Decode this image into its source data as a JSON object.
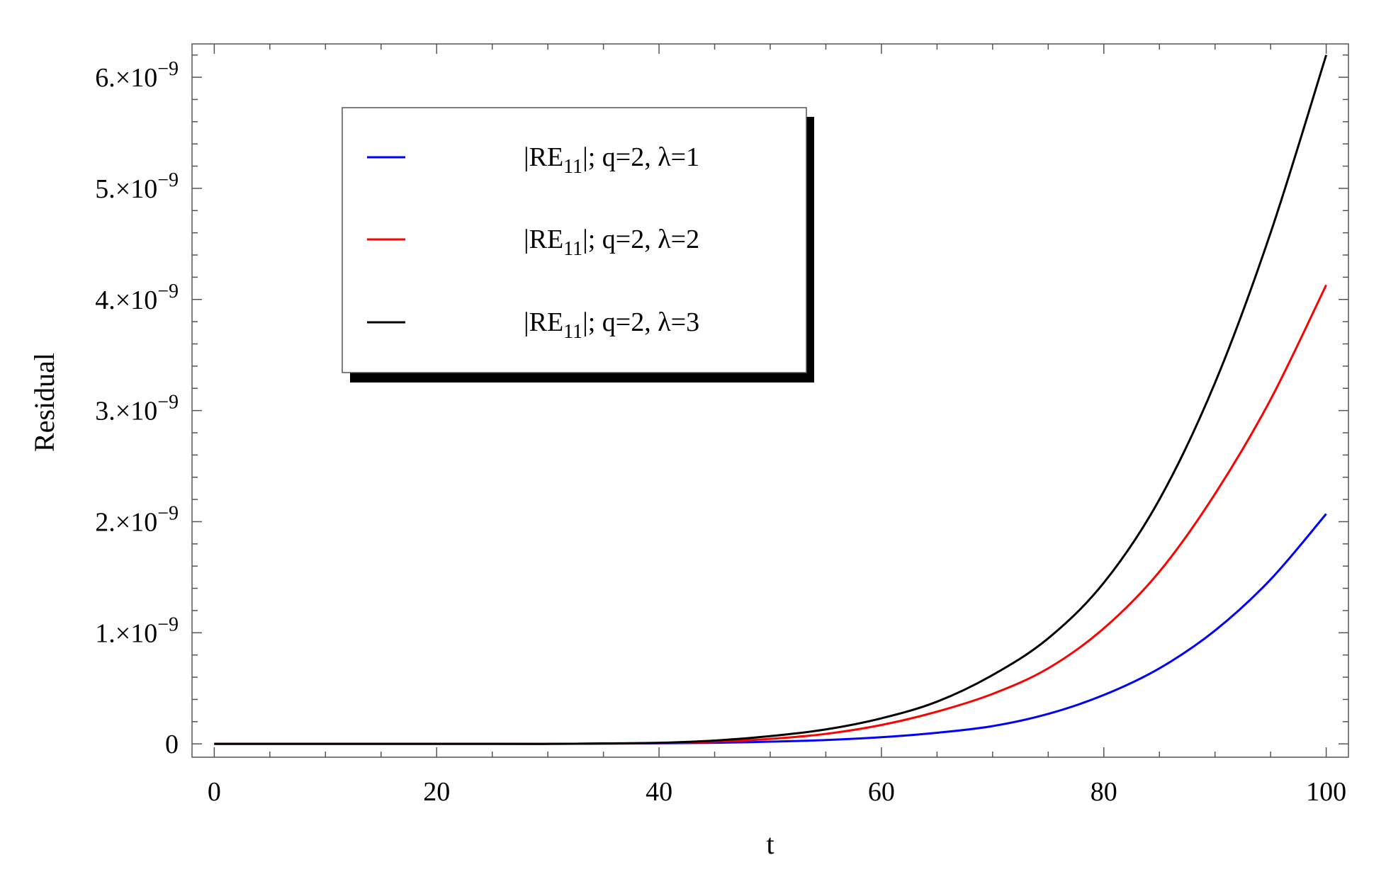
{
  "chart_data": {
    "type": "line",
    "title": "",
    "xlabel": "t",
    "ylabel": "Residual",
    "xlim": [
      -2,
      102
    ],
    "ylim": [
      -1.2e-10,
      6.3e-09
    ],
    "x_ticks": [
      {
        "value": 0,
        "label": "0"
      },
      {
        "value": 20,
        "label": "20"
      },
      {
        "value": 40,
        "label": "40"
      },
      {
        "value": 60,
        "label": "60"
      },
      {
        "value": 80,
        "label": "80"
      },
      {
        "value": 100,
        "label": "100"
      }
    ],
    "y_ticks": [
      {
        "value": 0,
        "mantissa": "0",
        "exponent": ""
      },
      {
        "value": 1e-09,
        "mantissa": "1.×10",
        "exponent": "−9"
      },
      {
        "value": 2e-09,
        "mantissa": "2.×10",
        "exponent": "−9"
      },
      {
        "value": 3e-09,
        "mantissa": "3.×10",
        "exponent": "−9"
      },
      {
        "value": 4e-09,
        "mantissa": "4.×10",
        "exponent": "−9"
      },
      {
        "value": 5e-09,
        "mantissa": "5.×10",
        "exponent": "−9"
      },
      {
        "value": 6e-09,
        "mantissa": "6.×10",
        "exponent": "−9"
      }
    ],
    "x_minor_step": 5,
    "y_minor_step": 2e-10,
    "grid": false,
    "legend_position": "top-left",
    "x": [
      0,
      5,
      10,
      15,
      20,
      25,
      30,
      35,
      40,
      45,
      50,
      55,
      60,
      65,
      70,
      75,
      80,
      85,
      90,
      95,
      100
    ],
    "series": [
      {
        "name": "|RE11|; q=2, λ=1",
        "label_main": "|RE",
        "label_sub": "11",
        "label_rest": "|; q=2, λ=1",
        "color": "#0000ff",
        "values": [
          0,
          0,
          0,
          0,
          0,
          0,
          0,
          2e-12,
          5e-12,
          1e-11,
          2e-11,
          3.5e-11,
          6e-11,
          1e-10,
          1.6e-10,
          2.7e-10,
          4.4e-10,
          6.8e-10,
          1.02e-09,
          1.48e-09,
          2.07e-09
        ]
      },
      {
        "name": "|RE11|; q=2, λ=2",
        "label_main": "|RE",
        "label_sub": "11",
        "label_rest": "|; q=2, λ=2",
        "color": "#ff0000",
        "values": [
          0,
          0,
          0,
          0,
          0,
          0,
          0,
          3e-12,
          8e-12,
          2e-11,
          4.5e-11,
          9e-11,
          1.7e-10,
          2.9e-10,
          4.5e-10,
          6.8e-10,
          1.04e-09,
          1.55e-09,
          2.25e-09,
          3.1e-09,
          4.13e-09
        ]
      },
      {
        "name": "|RE11|; q=2, λ=3",
        "label_main": "|RE",
        "label_sub": "11",
        "label_rest": "|; q=2, λ=3",
        "color": "#000000",
        "values": [
          0,
          0,
          0,
          0,
          0,
          0,
          0,
          4e-12,
          1e-11,
          3e-11,
          7e-11,
          1.3e-10,
          2.3e-10,
          3.8e-10,
          6.2e-10,
          9.5e-10,
          1.45e-09,
          2.2e-09,
          3.25e-09,
          4.6e-09,
          6.2e-09
        ]
      }
    ]
  }
}
